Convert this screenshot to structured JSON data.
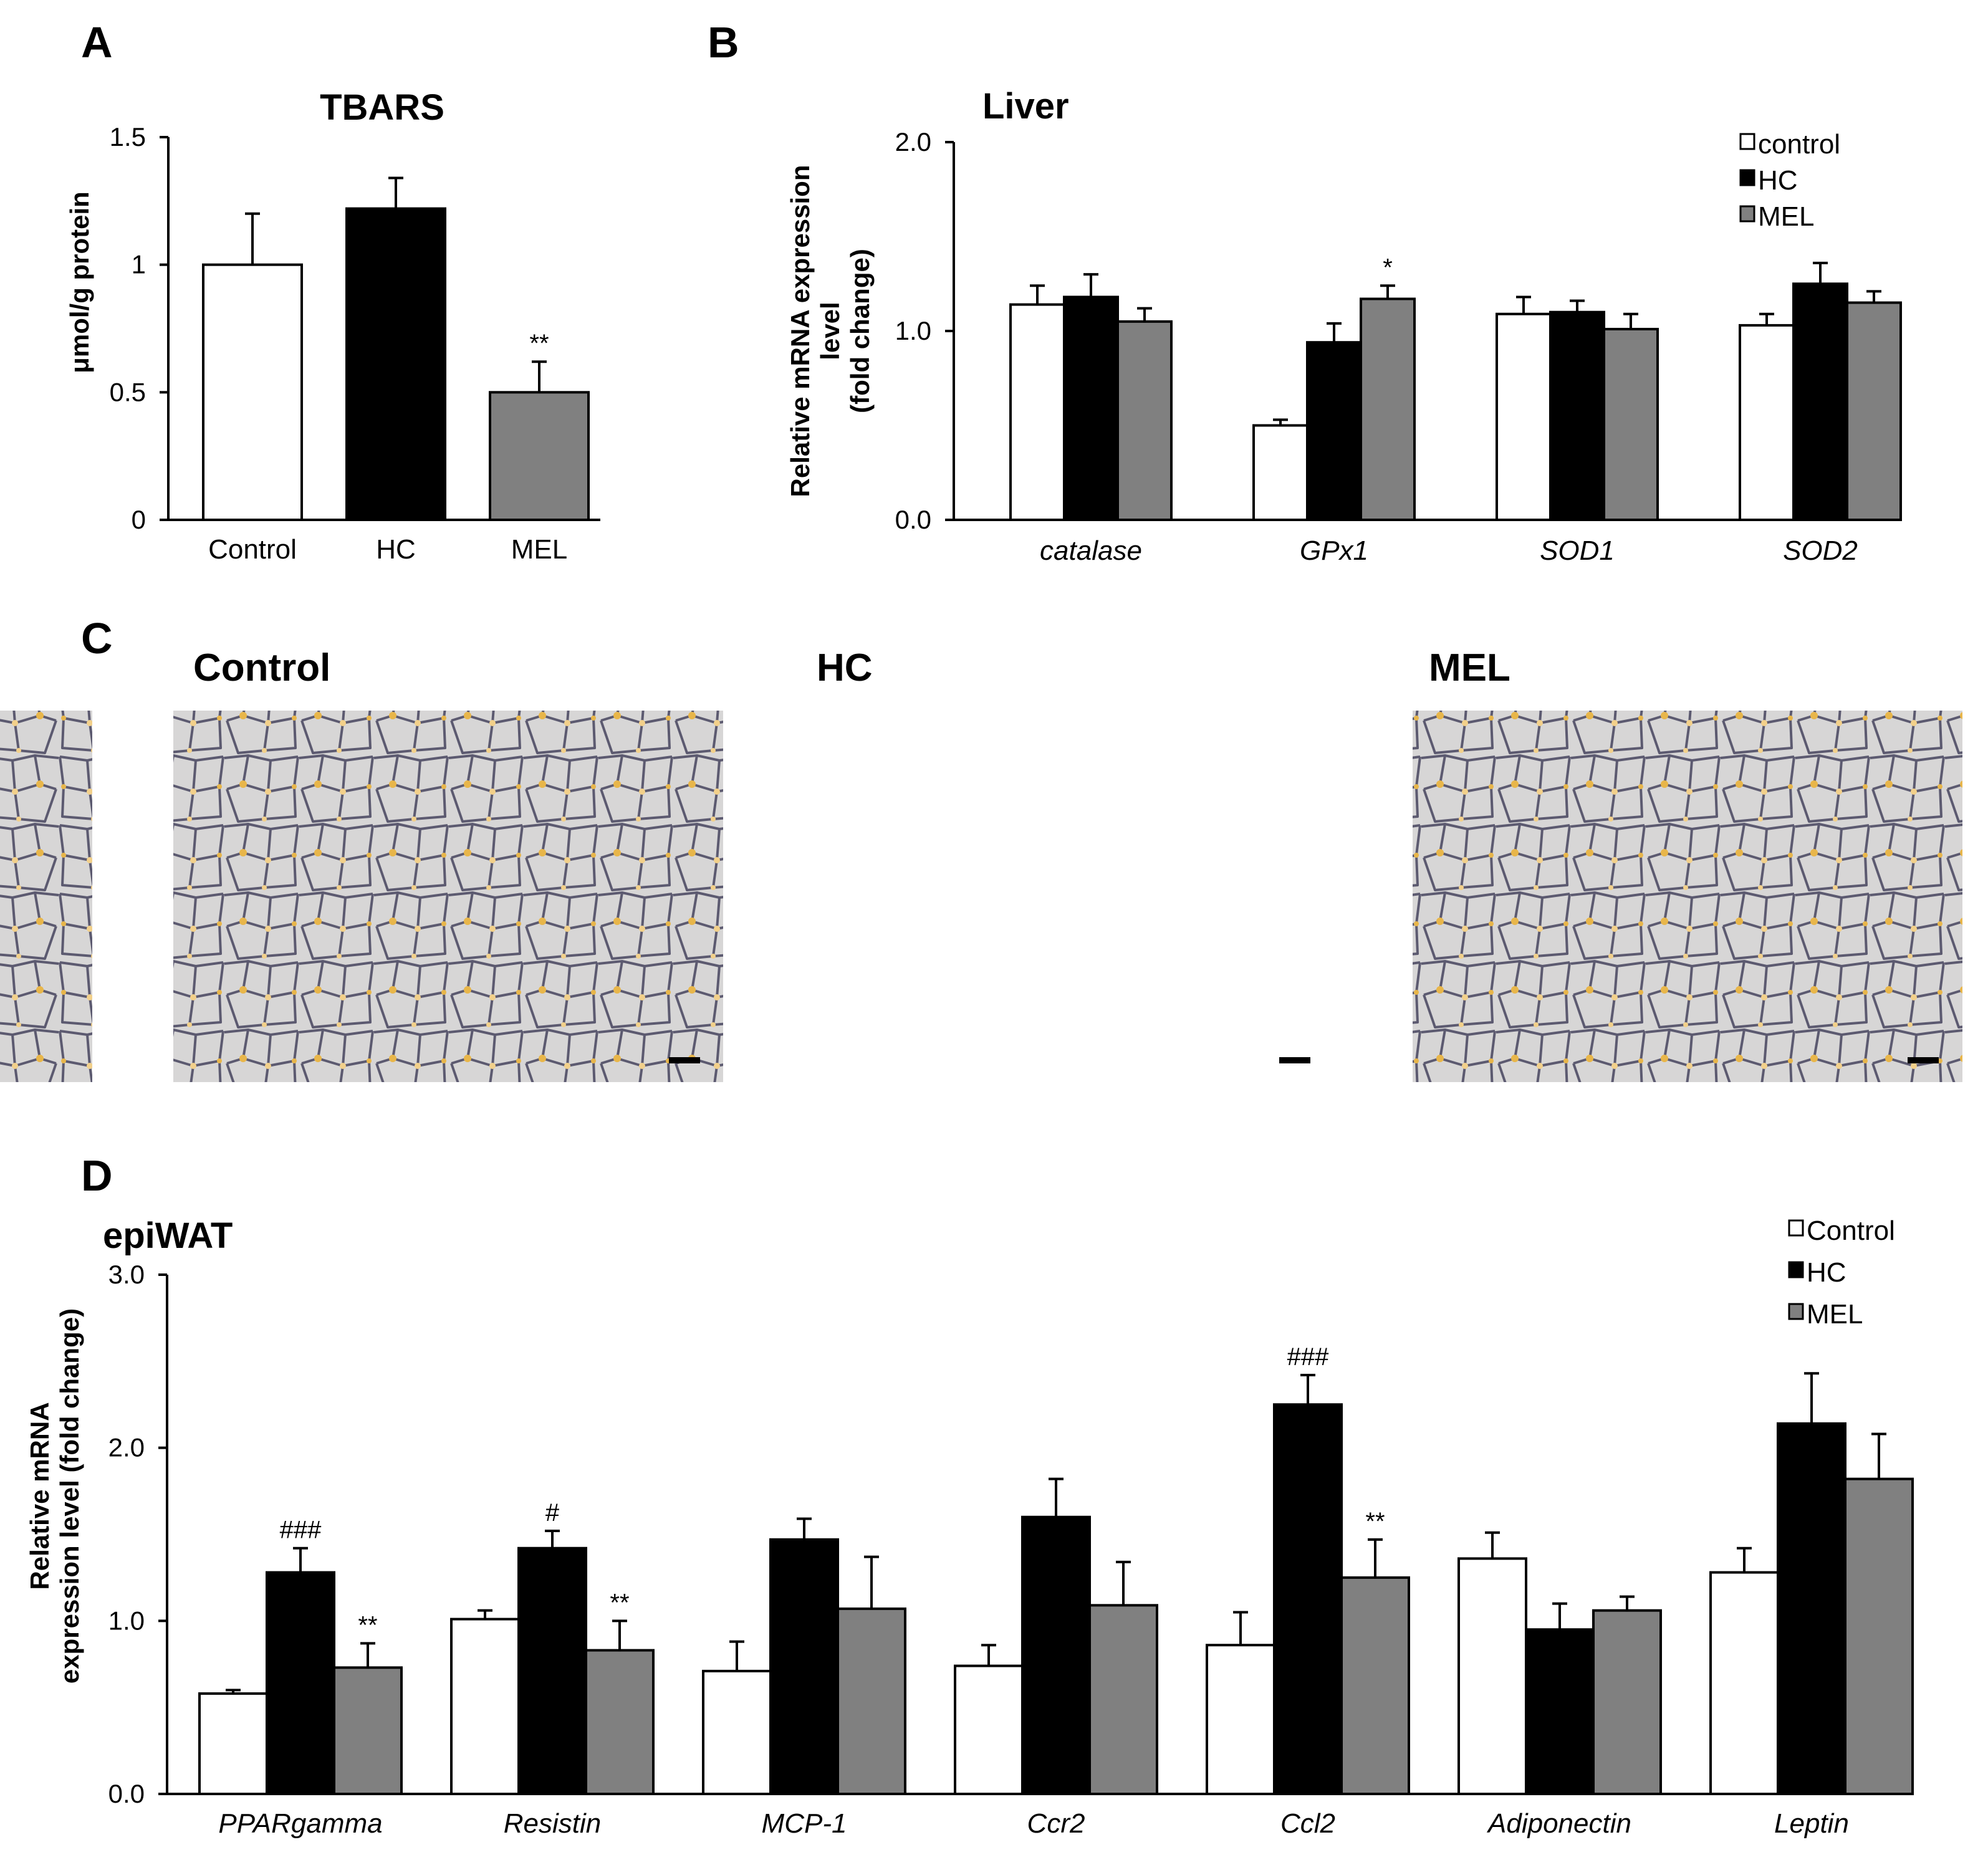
{
  "figure": {
    "panels": {
      "A": "A",
      "B": "B",
      "C": "C",
      "D": "D"
    }
  },
  "colors": {
    "control": "#ffffff",
    "hc": "#000000",
    "mel": "#808080",
    "axis": "#000000",
    "photo_bg": "#d7d6d6",
    "cell_wall": "#5c5a70",
    "stain": "#e8b64a"
  },
  "chart_data": [
    {
      "id": "A",
      "type": "bar",
      "title": "TBARS",
      "xlabel": "",
      "ylabel": "μmol/g protein",
      "ylim": [
        0,
        1.5
      ],
      "yticks": [
        0,
        0.5,
        1,
        1.5
      ],
      "ytick_labels": [
        "0",
        "0.5",
        "1",
        "1.5"
      ],
      "grid": false,
      "categories": [
        "Control",
        "HC",
        "MEL"
      ],
      "values": [
        1.0,
        1.22,
        0.5
      ],
      "errors": [
        0.2,
        0.12,
        0.12
      ],
      "colors": [
        "#ffffff",
        "#000000",
        "#808080"
      ],
      "annotations": [
        "",
        "",
        "**"
      ]
    },
    {
      "id": "B",
      "type": "bar",
      "title": "Liver",
      "xlabel": "",
      "ylabel": [
        "Relative mRNA  expression",
        "level",
        "(fold change)"
      ],
      "ylim": [
        0,
        2.0
      ],
      "yticks": [
        0,
        1.0,
        2.0
      ],
      "ytick_labels": [
        "0.0",
        "1.0",
        "2.0"
      ],
      "grid": false,
      "legend_position": "top-right",
      "categories": [
        "catalase",
        "GPx1",
        "SOD1",
        "SOD2"
      ],
      "series": [
        {
          "name": "control",
          "color": "#ffffff",
          "values": [
            1.14,
            0.5,
            1.09,
            1.03
          ],
          "errors": [
            0.1,
            0.03,
            0.09,
            0.06
          ],
          "annotations": [
            "",
            "",
            "",
            ""
          ]
        },
        {
          "name": "HC",
          "color": "#000000",
          "values": [
            1.18,
            0.94,
            1.1,
            1.25
          ],
          "errors": [
            0.12,
            0.1,
            0.06,
            0.11
          ],
          "annotations": [
            "",
            "",
            "",
            ""
          ]
        },
        {
          "name": "MEL",
          "color": "#808080",
          "values": [
            1.05,
            1.17,
            1.01,
            1.15
          ],
          "errors": [
            0.07,
            0.07,
            0.08,
            0.06
          ],
          "annotations": [
            "",
            "*",
            "",
            ""
          ]
        }
      ]
    },
    {
      "id": "D",
      "type": "bar",
      "title": "epiWAT",
      "xlabel": "",
      "ylabel": [
        "Relative mRNA",
        "expression level (fold change)"
      ],
      "ylim": [
        0,
        3.0
      ],
      "yticks": [
        0,
        1.0,
        2.0,
        3.0
      ],
      "ytick_labels": [
        "0.0",
        "1.0",
        "2.0",
        "3.0"
      ],
      "grid": false,
      "legend_position": "top-right",
      "categories": [
        "PPARgamma",
        "Resistin",
        "MCP-1",
        "Ccr2",
        "Ccl2",
        "Adiponectin",
        "Leptin"
      ],
      "series": [
        {
          "name": "Control",
          "color": "#ffffff",
          "values": [
            0.58,
            1.01,
            0.71,
            0.74,
            0.86,
            1.36,
            1.28
          ],
          "errors": [
            0.02,
            0.05,
            0.17,
            0.12,
            0.19,
            0.15,
            0.14
          ],
          "annotations": [
            "",
            "",
            "",
            "",
            "",
            "",
            ""
          ]
        },
        {
          "name": "HC",
          "color": "#000000",
          "values": [
            1.28,
            1.42,
            1.47,
            1.6,
            2.25,
            0.95,
            2.14
          ],
          "errors": [
            0.14,
            0.1,
            0.12,
            0.22,
            0.17,
            0.15,
            0.29
          ],
          "annotations": [
            "###",
            "#",
            "",
            "",
            "###",
            "",
            ""
          ]
        },
        {
          "name": "MEL",
          "color": "#808080",
          "values": [
            0.73,
            0.83,
            1.07,
            1.09,
            1.25,
            1.06,
            1.82
          ],
          "errors": [
            0.14,
            0.17,
            0.3,
            0.25,
            0.22,
            0.08,
            0.26
          ],
          "annotations": [
            "**",
            "**",
            "",
            "",
            "**",
            "",
            ""
          ]
        }
      ]
    }
  ],
  "micrographs": [
    {
      "label": "Control"
    },
    {
      "label": "HC"
    },
    {
      "label": "MEL"
    }
  ]
}
